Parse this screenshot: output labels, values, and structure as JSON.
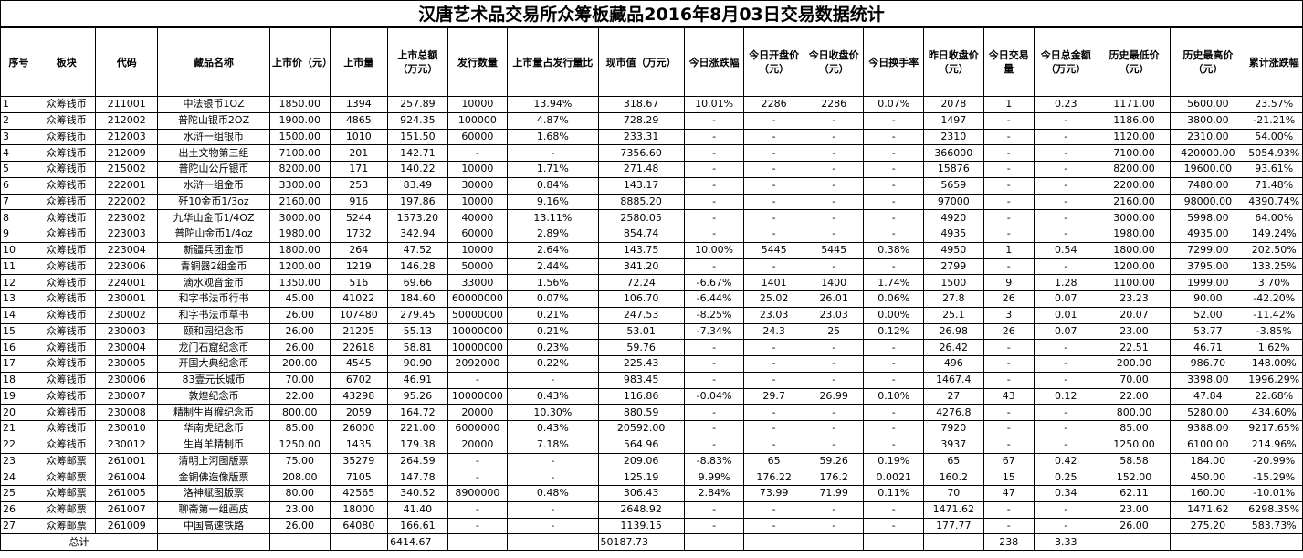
{
  "title": "汉唐艺术品交易所众筹板藏品2016年8月03日交易数据统计",
  "headers": [
    "序号",
    "板块",
    "代码",
    "藏品名称",
    "上市价（元）",
    "上市量",
    "上市总额（万元）",
    "发行数量",
    "上市量占发行量比",
    "现市值（万元）",
    "今日涨跌幅",
    "今日开盘价（元）",
    "今日收盘价（元）",
    "今日换手率",
    "昨日收盘价（元）",
    "今日交易量",
    "今日总金额（万元）",
    "历史最低价（元）",
    "历史最高价（元）",
    "累计涨跌幅"
  ],
  "rows": [
    [
      "1",
      "众筹钱币",
      "211001",
      "中法银币1OZ",
      "1850.00",
      "1394",
      "257.89",
      "10000",
      "13.94%",
      "318.67",
      "10.01%",
      "2286",
      "2286",
      "0.07%",
      "2078",
      "1",
      "0.23",
      "1171.00",
      "5600.00",
      "23.57%"
    ],
    [
      "2",
      "众筹钱币",
      "212002",
      "普陀山银币2OZ",
      "1900.00",
      "4865",
      "924.35",
      "100000",
      "4.87%",
      "728.29",
      "-",
      "-",
      "-",
      "-",
      "1497",
      "-",
      "-",
      "1186.00",
      "3800.00",
      "-21.21%"
    ],
    [
      "3",
      "众筹钱币",
      "212003",
      "水浒一组银币",
      "1500.00",
      "1010",
      "151.50",
      "60000",
      "1.68%",
      "233.31",
      "-",
      "-",
      "-",
      "-",
      "2310",
      "-",
      "-",
      "1120.00",
      "2310.00",
      "54.00%"
    ],
    [
      "4",
      "众筹钱币",
      "212009",
      "出土文物第三组",
      "7100.00",
      "201",
      "142.71",
      "-",
      "-",
      "7356.60",
      "-",
      "-",
      "-",
      "-",
      "366000",
      "-",
      "-",
      "7100.00",
      "420000.00",
      "5054.93%"
    ],
    [
      "5",
      "众筹钱币",
      "215002",
      "普陀山公斤银币",
      "8200.00",
      "171",
      "140.22",
      "10000",
      "1.71%",
      "271.48",
      "-",
      "-",
      "-",
      "-",
      "15876",
      "-",
      "-",
      "8200.00",
      "19600.00",
      "93.61%"
    ],
    [
      "6",
      "众筹钱币",
      "222001",
      "水浒一组金币",
      "3300.00",
      "253",
      "83.49",
      "30000",
      "0.84%",
      "143.17",
      "-",
      "-",
      "-",
      "-",
      "5659",
      "-",
      "-",
      "2200.00",
      "7480.00",
      "71.48%"
    ],
    [
      "7",
      "众筹钱币",
      "222002",
      "歼10金币1/3oz",
      "2160.00",
      "916",
      "197.86",
      "10000",
      "9.16%",
      "8885.20",
      "-",
      "-",
      "-",
      "-",
      "97000",
      "-",
      "-",
      "2160.00",
      "98000.00",
      "4390.74%"
    ],
    [
      "8",
      "众筹钱币",
      "223002",
      "九华山金币1/4OZ",
      "3000.00",
      "5244",
      "1573.20",
      "40000",
      "13.11%",
      "2580.05",
      "-",
      "-",
      "-",
      "-",
      "4920",
      "-",
      "-",
      "3000.00",
      "5998.00",
      "64.00%"
    ],
    [
      "9",
      "众筹钱币",
      "223003",
      "普陀山金币1/4oz",
      "1980.00",
      "1732",
      "342.94",
      "60000",
      "2.89%",
      "854.74",
      "-",
      "-",
      "-",
      "-",
      "4935",
      "-",
      "-",
      "1980.00",
      "4935.00",
      "149.24%"
    ],
    [
      "10",
      "众筹钱币",
      "223004",
      "新疆兵团金币",
      "1800.00",
      "264",
      "47.52",
      "10000",
      "2.64%",
      "143.75",
      "10.00%",
      "5445",
      "5445",
      "0.38%",
      "4950",
      "1",
      "0.54",
      "1800.00",
      "7299.00",
      "202.50%"
    ],
    [
      "11",
      "众筹钱币",
      "223006",
      "青铜器2组金币",
      "1200.00",
      "1219",
      "146.28",
      "50000",
      "2.44%",
      "341.20",
      "-",
      "-",
      "-",
      "-",
      "2799",
      "-",
      "-",
      "1200.00",
      "3795.00",
      "133.25%"
    ],
    [
      "12",
      "众筹钱币",
      "224001",
      "滴水观音金币",
      "1350.00",
      "516",
      "69.66",
      "33000",
      "1.56%",
      "72.24",
      "-6.67%",
      "1401",
      "1400",
      "1.74%",
      "1500",
      "9",
      "1.28",
      "1100.00",
      "1999.00",
      "3.70%"
    ],
    [
      "13",
      "众筹钱币",
      "230001",
      "和字书法币行书",
      "45.00",
      "41022",
      "184.60",
      "60000000",
      "0.07%",
      "106.70",
      "-6.44%",
      "25.02",
      "26.01",
      "0.06%",
      "27.8",
      "26",
      "0.07",
      "23.23",
      "90.00",
      "-42.20%"
    ],
    [
      "14",
      "众筹钱币",
      "230002",
      "和字书法币草书",
      "26.00",
      "107480",
      "279.45",
      "50000000",
      "0.21%",
      "247.53",
      "-8.25%",
      "23.03",
      "23.03",
      "0.00%",
      "25.1",
      "3",
      "0.01",
      "20.07",
      "52.00",
      "-11.42%"
    ],
    [
      "15",
      "众筹钱币",
      "230003",
      "颐和园纪念币",
      "26.00",
      "21205",
      "55.13",
      "10000000",
      "0.21%",
      "53.01",
      "-7.34%",
      "24.3",
      "25",
      "0.12%",
      "26.98",
      "26",
      "0.07",
      "23.00",
      "53.77",
      "-3.85%"
    ],
    [
      "16",
      "众筹钱币",
      "230004",
      "龙门石窟纪念币",
      "26.00",
      "22618",
      "58.81",
      "10000000",
      "0.23%",
      "59.76",
      "-",
      "-",
      "-",
      "-",
      "26.42",
      "-",
      "-",
      "22.51",
      "46.71",
      "1.62%"
    ],
    [
      "17",
      "众筹钱币",
      "230005",
      "开国大典纪念币",
      "200.00",
      "4545",
      "90.90",
      "2092000",
      "0.22%",
      "225.43",
      "-",
      "-",
      "-",
      "-",
      "496",
      "-",
      "-",
      "200.00",
      "986.70",
      "148.00%"
    ],
    [
      "18",
      "众筹钱币",
      "230006",
      "83壹元长城币",
      "70.00",
      "6702",
      "46.91",
      "-",
      "-",
      "983.45",
      "-",
      "-",
      "-",
      "-",
      "1467.4",
      "-",
      "-",
      "70.00",
      "3398.00",
      "1996.29%"
    ],
    [
      "19",
      "众筹钱币",
      "230007",
      "敦煌纪念币",
      "22.00",
      "43298",
      "95.26",
      "10000000",
      "0.43%",
      "116.86",
      "-0.04%",
      "29.7",
      "26.99",
      "0.10%",
      "27",
      "43",
      "0.12",
      "22.00",
      "47.84",
      "22.68%"
    ],
    [
      "20",
      "众筹钱币",
      "230008",
      "精制生肖猴纪念币",
      "800.00",
      "2059",
      "164.72",
      "20000",
      "10.30%",
      "880.59",
      "-",
      "-",
      "-",
      "-",
      "4276.8",
      "-",
      "-",
      "800.00",
      "5280.00",
      "434.60%"
    ],
    [
      "21",
      "众筹钱币",
      "230010",
      "华南虎纪念币",
      "85.00",
      "26000",
      "221.00",
      "6000000",
      "0.43%",
      "20592.00",
      "-",
      "-",
      "-",
      "-",
      "7920",
      "-",
      "-",
      "85.00",
      "9388.00",
      "9217.65%"
    ],
    [
      "22",
      "众筹钱币",
      "230012",
      "生肖羊精制币",
      "1250.00",
      "1435",
      "179.38",
      "20000",
      "7.18%",
      "564.96",
      "-",
      "-",
      "-",
      "-",
      "3937",
      "-",
      "-",
      "1250.00",
      "6100.00",
      "214.96%"
    ],
    [
      "23",
      "众筹邮票",
      "261001",
      "清明上河图版票",
      "75.00",
      "35279",
      "264.59",
      "-",
      "-",
      "209.06",
      "-8.83%",
      "65",
      "59.26",
      "0.19%",
      "65",
      "67",
      "0.42",
      "58.58",
      "184.00",
      "-20.99%"
    ],
    [
      "24",
      "众筹邮票",
      "261004",
      "金铜佛造像版票",
      "208.00",
      "7105",
      "147.78",
      "-",
      "-",
      "125.19",
      "9.99%",
      "176.22",
      "176.2",
      "0.0021",
      "160.2",
      "15",
      "0.25",
      "152.00",
      "450.00",
      "-15.29%"
    ],
    [
      "25",
      "众筹邮票",
      "261005",
      "洛神赋图版票",
      "80.00",
      "42565",
      "340.52",
      "8900000",
      "0.48%",
      "306.43",
      "2.84%",
      "73.99",
      "71.99",
      "0.11%",
      "70",
      "47",
      "0.34",
      "62.11",
      "160.00",
      "-10.01%"
    ],
    [
      "26",
      "众筹邮票",
      "261007",
      "聊斋第一组画皮",
      "23.00",
      "18000",
      "41.40",
      "-",
      "-",
      "2648.92",
      "-",
      "-",
      "-",
      "-",
      "1471.62",
      "-",
      "-",
      "23.00",
      "1471.62",
      "6298.35%"
    ],
    [
      "27",
      "众筹邮票",
      "261009",
      "中国高速铁路",
      "26.00",
      "64080",
      "166.61",
      "-",
      "-",
      "1139.15",
      "-",
      "-",
      "-",
      "-",
      "177.77",
      "-",
      "-",
      "26.00",
      "275.20",
      "583.73%"
    ]
  ],
  "total": {
    "label": "总计",
    "listing_total": "6414.67",
    "market_value": "50187.73",
    "volume": "238",
    "amount": "3.33"
  }
}
